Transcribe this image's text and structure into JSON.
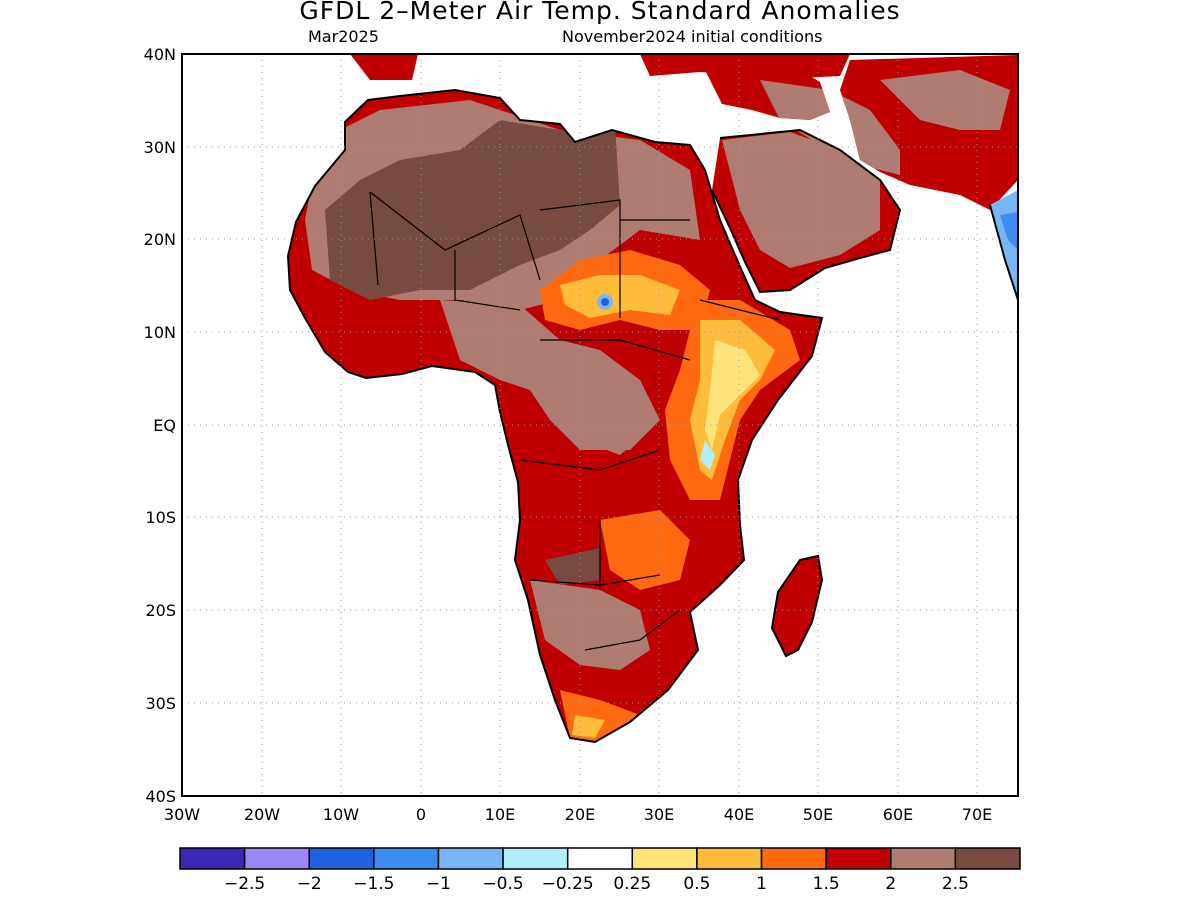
{
  "title": "GFDL 2–Meter Air Temp. Standard Anomalies",
  "subtitle_left": "Mar2025",
  "subtitle_right": "November2024 initial conditions",
  "map": {
    "lon_range": [
      -30,
      75
    ],
    "lat_range": [
      -40,
      40
    ],
    "lat_ticks": [
      "40N",
      "30N",
      "20N",
      "10N",
      "EQ",
      "10S",
      "20S",
      "30S",
      "40S"
    ],
    "lon_ticks": [
      "30W",
      "20W",
      "10W",
      "0",
      "10E",
      "20E",
      "30E",
      "40E",
      "50E",
      "60E",
      "70E"
    ],
    "grid": "dotted",
    "region": "Africa, Arabian Peninsula, Madagascar"
  },
  "colorbar": {
    "colors": [
      "#3a28b5",
      "#9b87f5",
      "#1f62e0",
      "#3b8ef0",
      "#78b6f7",
      "#b0eef8",
      "#ffffff",
      "#ffe27a",
      "#ffbb3a",
      "#ff6a10",
      "#c00000",
      "#ae7c72",
      "#784b42"
    ],
    "labels": [
      "−2.5",
      "−2",
      "−1.5",
      "−1",
      "−0.5",
      "−0.25",
      "0.25",
      "0.5",
      "1",
      "1.5",
      "2",
      "2.5"
    ]
  },
  "palette": {
    "brown_dark": "#784b42",
    "brown_light": "#ae7c72",
    "red": "#c00000",
    "orange_red": "#ff6a10",
    "orange": "#ffbb3a",
    "yellow": "#ffe27a",
    "blue": "#3b8ef0",
    "light_blue": "#78b6f7"
  }
}
